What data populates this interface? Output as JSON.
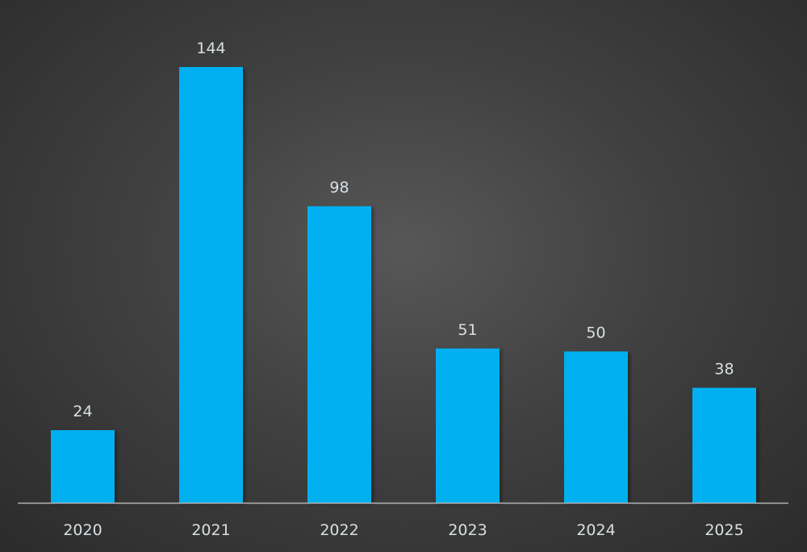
{
  "chart_data": {
    "type": "bar",
    "title": "",
    "xlabel": "",
    "ylabel": "",
    "categories": [
      "2020",
      "2021",
      "2022",
      "2023",
      "2024",
      "2025"
    ],
    "values": [
      24,
      144,
      98,
      51,
      50,
      38
    ],
    "data_labels": [
      "24",
      "144",
      "98",
      "51",
      "50",
      "38"
    ],
    "ylim": [
      0,
      144
    ],
    "grid": false,
    "y_axis_visible": false,
    "bar_color": "#00B0F0",
    "background_color": "#3c3c3c"
  }
}
